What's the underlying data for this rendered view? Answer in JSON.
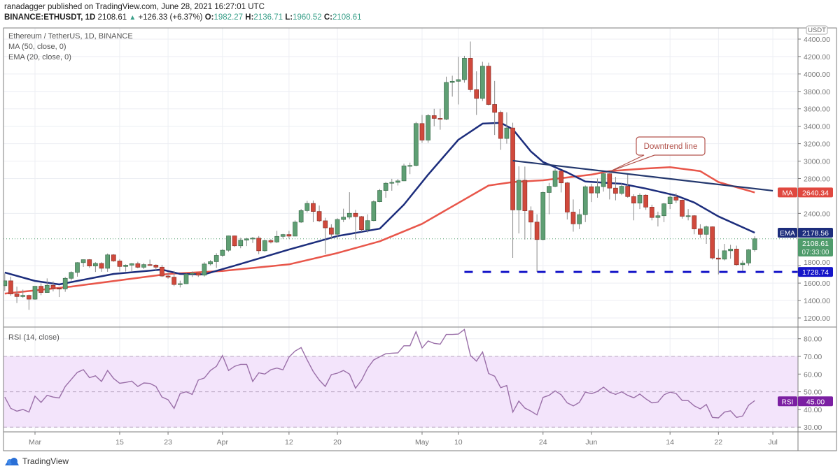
{
  "header": {
    "publisher_line": "ranadagger published on TradingView.com, June 28, 2021 16:27:01 UTC",
    "symbol": "BINANCE:ETHUSDT, 1D",
    "last": "2108.61",
    "change": "+126.33 (+6.37%)",
    "o_label": "O:",
    "o": "1982.27",
    "h_label": "H:",
    "h": "2136.71",
    "l_label": "L:",
    "l": "1960.52",
    "c_label": "C:",
    "c": "2108.61",
    "up_icon": "triangle-up-icon"
  },
  "legend": {
    "title": "Ethereum / TetherUS, 1D, BINANCE",
    "ma": "MA (50, close, 0)",
    "ema": "EMA (20, close, 0)",
    "rsi": "RSI (14, close)"
  },
  "price_axis": {
    "currency": "USDT",
    "labels": [
      "4400.00",
      "4200.00",
      "4000.00",
      "3800.00",
      "3600.00",
      "3400.00",
      "3200.00",
      "3000.00",
      "2800.00",
      "2400.00",
      "1800.00",
      "1600.00",
      "1400.00",
      "1200.00"
    ],
    "values": [
      4400,
      4200,
      4000,
      3800,
      3600,
      3400,
      3200,
      3000,
      2800,
      2400,
      1800,
      1600,
      1400,
      1200
    ]
  },
  "rsi_axis": {
    "labels": [
      "80.00",
      "70.00",
      "60.00",
      "50.00",
      "40.00",
      "30.00"
    ],
    "values": [
      80,
      70,
      60,
      50,
      40,
      30
    ]
  },
  "time_axis": {
    "ticks": [
      {
        "label": "Mar",
        "date": "2021-03-01"
      },
      {
        "label": "15",
        "date": "2021-03-15"
      },
      {
        "label": "23",
        "date": "2021-03-23"
      },
      {
        "label": "Apr",
        "date": "2021-04-01"
      },
      {
        "label": "12",
        "date": "2021-04-12"
      },
      {
        "label": "20",
        "date": "2021-04-20"
      },
      {
        "label": "May",
        "date": "2021-05-04"
      },
      {
        "label": "10",
        "date": "2021-05-10"
      },
      {
        "label": "24",
        "date": "2021-05-24"
      },
      {
        "label": "Jun",
        "date": "2021-06-01"
      },
      {
        "label": "14",
        "date": "2021-06-14"
      },
      {
        "label": "22",
        "date": "2021-06-22"
      },
      {
        "label": "Jul",
        "date": "2021-07-01"
      }
    ]
  },
  "badges": {
    "ma": {
      "tag": "MA",
      "value": "2640.34",
      "price": 2640.34,
      "color": "#e0483f"
    },
    "ema": {
      "tag": "EMA",
      "value": "2178.56",
      "price": 2178.56,
      "color": "#1c2d7c"
    },
    "last": {
      "value": "2108.61",
      "countdown": "07:33:00",
      "price": 2108.61,
      "color": "#4f9c6c"
    },
    "support": {
      "value": "1728.74",
      "price": 1728.74,
      "color": "#1515c8"
    },
    "rsi": {
      "tag": "RSI",
      "value": "45.00",
      "level": 45.0,
      "color": "#7b1fa2"
    }
  },
  "annotation": {
    "label": "Downtrend line",
    "color": "#b3544d"
  },
  "brand": {
    "name": "TradingView",
    "icon": "tradingview-cloud-icon"
  },
  "colors": {
    "up": "#5f9f74",
    "down": "#d0493c",
    "ma": "#e8564a",
    "ema": "#1c2d7c",
    "trendline": "#24386e",
    "rsi": "#9a6fa8",
    "rsi_band": "#f3e4fb"
  },
  "chart_data": {
    "type": "candlestick",
    "symbol": "BINANCE:ETHUSDT",
    "interval": "1D",
    "ylim": [
      1200,
      4400
    ],
    "grid": true,
    "candles_fields": [
      "date",
      "open",
      "high",
      "low",
      "close"
    ],
    "candles": [
      [
        "2021-02-24",
        1570,
        1710,
        1511,
        1626
      ],
      [
        "2021-02-25",
        1626,
        1674,
        1455,
        1475
      ],
      [
        "2021-02-26",
        1475,
        1559,
        1371,
        1446
      ],
      [
        "2021-02-27",
        1446,
        1525,
        1432,
        1459
      ],
      [
        "2021-02-28",
        1459,
        1468,
        1293,
        1416
      ],
      [
        "2021-03-01",
        1416,
        1565,
        1410,
        1564
      ],
      [
        "2021-03-02",
        1564,
        1597,
        1461,
        1492
      ],
      [
        "2021-03-03",
        1492,
        1654,
        1490,
        1575
      ],
      [
        "2021-03-04",
        1575,
        1620,
        1505,
        1541
      ],
      [
        "2021-03-05",
        1541,
        1550,
        1440,
        1533
      ],
      [
        "2021-03-06",
        1533,
        1670,
        1500,
        1655
      ],
      [
        "2021-03-07",
        1655,
        1735,
        1630,
        1723
      ],
      [
        "2021-03-08",
        1723,
        1840,
        1674,
        1835
      ],
      [
        "2021-03-09",
        1835,
        1870,
        1786,
        1869
      ],
      [
        "2021-03-10",
        1869,
        1875,
        1775,
        1796
      ],
      [
        "2021-03-11",
        1796,
        1840,
        1728,
        1826
      ],
      [
        "2021-03-12",
        1826,
        1840,
        1730,
        1770
      ],
      [
        "2021-03-13",
        1770,
        1940,
        1730,
        1924
      ],
      [
        "2021-03-14",
        1924,
        1932,
        1845,
        1854
      ],
      [
        "2021-03-15",
        1854,
        1875,
        1733,
        1791
      ],
      [
        "2021-03-16",
        1791,
        1815,
        1732,
        1806
      ],
      [
        "2021-03-17",
        1806,
        1830,
        1730,
        1823
      ],
      [
        "2021-03-18",
        1823,
        1845,
        1770,
        1782
      ],
      [
        "2021-03-19",
        1782,
        1830,
        1762,
        1812
      ],
      [
        "2021-03-20",
        1812,
        1870,
        1798,
        1807
      ],
      [
        "2021-03-21",
        1807,
        1815,
        1744,
        1783
      ],
      [
        "2021-03-22",
        1783,
        1810,
        1670,
        1681
      ],
      [
        "2021-03-23",
        1681,
        1721,
        1650,
        1668
      ],
      [
        "2021-03-24",
        1668,
        1740,
        1565,
        1584
      ],
      [
        "2021-03-25",
        1584,
        1628,
        1550,
        1593
      ],
      [
        "2021-03-26",
        1593,
        1710,
        1590,
        1703
      ],
      [
        "2021-03-27",
        1703,
        1734,
        1670,
        1714
      ],
      [
        "2021-03-28",
        1714,
        1720,
        1671,
        1691
      ],
      [
        "2021-03-29",
        1691,
        1840,
        1675,
        1819
      ],
      [
        "2021-03-30",
        1819,
        1864,
        1803,
        1846
      ],
      [
        "2021-03-31",
        1846,
        1943,
        1775,
        1918
      ],
      [
        "2021-04-01",
        1918,
        1990,
        1900,
        1977
      ],
      [
        "2021-04-02",
        1977,
        2145,
        1960,
        2142
      ],
      [
        "2021-04-03",
        2142,
        2145,
        2015,
        2028
      ],
      [
        "2021-04-04",
        2028,
        2120,
        2000,
        2093
      ],
      [
        "2021-04-05",
        2093,
        2120,
        2025,
        2108
      ],
      [
        "2021-04-06",
        2108,
        2130,
        2060,
        2116
      ],
      [
        "2021-04-07",
        2116,
        2140,
        1932,
        1971
      ],
      [
        "2021-04-08",
        1971,
        2100,
        1960,
        2088
      ],
      [
        "2021-04-09",
        2088,
        2105,
        2055,
        2072
      ],
      [
        "2021-04-10",
        2072,
        2200,
        2060,
        2136
      ],
      [
        "2021-04-11",
        2136,
        2165,
        2110,
        2157
      ],
      [
        "2021-04-12",
        2157,
        2200,
        2110,
        2139
      ],
      [
        "2021-04-13",
        2139,
        2320,
        2138,
        2300
      ],
      [
        "2021-04-14",
        2300,
        2450,
        2290,
        2432
      ],
      [
        "2021-04-15",
        2432,
        2544,
        2410,
        2514
      ],
      [
        "2021-04-16",
        2514,
        2548,
        2300,
        2422
      ],
      [
        "2021-04-17",
        2422,
        2490,
        2300,
        2315
      ],
      [
        "2021-04-18",
        2315,
        2350,
        1935,
        2234
      ],
      [
        "2021-04-19",
        2234,
        2275,
        2110,
        2161
      ],
      [
        "2021-04-20",
        2161,
        2346,
        2102,
        2330
      ],
      [
        "2021-04-21",
        2330,
        2454,
        2300,
        2357
      ],
      [
        "2021-04-22",
        2357,
        2643,
        2333,
        2401
      ],
      [
        "2021-04-23",
        2401,
        2440,
        2100,
        2363
      ],
      [
        "2021-04-24",
        2363,
        2370,
        2190,
        2213
      ],
      [
        "2021-04-25",
        2213,
        2390,
        2180,
        2317
      ],
      [
        "2021-04-26",
        2317,
        2549,
        2310,
        2534
      ],
      [
        "2021-04-27",
        2534,
        2680,
        2528,
        2663
      ],
      [
        "2021-04-28",
        2663,
        2760,
        2580,
        2746
      ],
      [
        "2021-04-29",
        2746,
        2797,
        2660,
        2756
      ],
      [
        "2021-04-30",
        2756,
        2796,
        2720,
        2773
      ],
      [
        "2021-05-01",
        2773,
        2970,
        2771,
        2945
      ],
      [
        "2021-05-02",
        2945,
        2983,
        2850,
        2950
      ],
      [
        "2021-05-03",
        2950,
        3450,
        2940,
        3431
      ],
      [
        "2021-05-04",
        3431,
        3530,
        3210,
        3241
      ],
      [
        "2021-05-05",
        3241,
        3541,
        3210,
        3522
      ],
      [
        "2021-05-06",
        3522,
        3600,
        3400,
        3490
      ],
      [
        "2021-05-07",
        3490,
        3600,
        3360,
        3481
      ],
      [
        "2021-05-08",
        3481,
        3969,
        3470,
        3903
      ],
      [
        "2021-05-09",
        3903,
        3980,
        3740,
        3916
      ],
      [
        "2021-05-10",
        3916,
        4197,
        3650,
        3935
      ],
      [
        "2021-05-11",
        3935,
        4208,
        3900,
        4180
      ],
      [
        "2021-05-12",
        4180,
        4372,
        3790,
        3820
      ],
      [
        "2021-05-13",
        3820,
        4030,
        3530,
        3720
      ],
      [
        "2021-05-14",
        3720,
        4140,
        3690,
        4090
      ],
      [
        "2021-05-15",
        4090,
        4130,
        3640,
        3650
      ],
      [
        "2021-05-16",
        3650,
        3920,
        3300,
        3560
      ],
      [
        "2021-05-17",
        3560,
        3580,
        3130,
        3260
      ],
      [
        "2021-05-18",
        3260,
        3560,
        3200,
        3380
      ],
      [
        "2021-05-19",
        3380,
        3440,
        1890,
        2440
      ],
      [
        "2021-05-20",
        2440,
        2940,
        2170,
        2780
      ],
      [
        "2021-05-21",
        2780,
        2937,
        2100,
        2430
      ],
      [
        "2021-05-22",
        2430,
        2480,
        2100,
        2300
      ],
      [
        "2021-05-23",
        2300,
        2390,
        1728.74,
        2100
      ],
      [
        "2021-05-24",
        2100,
        2650,
        2090,
        2640
      ],
      [
        "2021-05-25",
        2640,
        2750,
        2390,
        2710
      ],
      [
        "2021-05-26",
        2710,
        2910,
        2700,
        2886
      ],
      [
        "2021-05-27",
        2886,
        2890,
        2640,
        2750
      ],
      [
        "2021-05-28",
        2750,
        2760,
        2330,
        2415
      ],
      [
        "2021-05-29",
        2415,
        2560,
        2190,
        2280
      ],
      [
        "2021-05-30",
        2280,
        2450,
        2220,
        2386
      ],
      [
        "2021-05-31",
        2386,
        2720,
        2300,
        2706
      ],
      [
        "2021-06-01",
        2706,
        2740,
        2530,
        2634
      ],
      [
        "2021-06-02",
        2634,
        2800,
        2580,
        2707
      ],
      [
        "2021-06-03",
        2707,
        2890,
        2650,
        2855
      ],
      [
        "2021-06-04",
        2855,
        2860,
        2560,
        2690
      ],
      [
        "2021-06-05",
        2690,
        2820,
        2550,
        2630
      ],
      [
        "2021-06-06",
        2630,
        2750,
        2610,
        2711
      ],
      [
        "2021-06-07",
        2711,
        2845,
        2580,
        2593
      ],
      [
        "2021-06-08",
        2593,
        2620,
        2320,
        2518
      ],
      [
        "2021-06-09",
        2518,
        2630,
        2450,
        2609
      ],
      [
        "2021-06-10",
        2609,
        2620,
        2440,
        2472
      ],
      [
        "2021-06-11",
        2472,
        2500,
        2320,
        2353
      ],
      [
        "2021-06-12",
        2353,
        2420,
        2250,
        2373
      ],
      [
        "2021-06-13",
        2373,
        2520,
        2300,
        2510
      ],
      [
        "2021-06-14",
        2510,
        2610,
        2450,
        2587
      ],
      [
        "2021-06-15",
        2587,
        2630,
        2520,
        2552
      ],
      [
        "2021-06-16",
        2552,
        2560,
        2340,
        2367
      ],
      [
        "2021-06-17",
        2367,
        2450,
        2320,
        2373
      ],
      [
        "2021-06-18",
        2373,
        2380,
        2160,
        2222
      ],
      [
        "2021-06-19",
        2222,
        2275,
        2120,
        2160
      ],
      [
        "2021-06-20",
        2160,
        2260,
        2050,
        2246
      ],
      [
        "2021-06-21",
        2246,
        2250,
        1870,
        1888
      ],
      [
        "2021-06-22",
        1888,
        1990,
        1700,
        1875
      ],
      [
        "2021-06-23",
        1875,
        2050,
        1860,
        1971
      ],
      [
        "2021-06-24",
        1971,
        2040,
        1880,
        1991
      ],
      [
        "2021-06-25",
        1991,
        2030,
        1800,
        1811
      ],
      [
        "2021-06-26",
        1811,
        1860,
        1720,
        1831
      ],
      [
        "2021-06-27",
        1831,
        1990,
        1800,
        1982.27
      ],
      [
        "2021-06-28",
        1982.27,
        2136.71,
        1960.52,
        2108.61
      ]
    ],
    "ma50": [
      [
        "2021-02-24",
        1480
      ],
      [
        "2021-03-07",
        1560
      ],
      [
        "2021-03-23",
        1705
      ],
      [
        "2021-04-01",
        1740
      ],
      [
        "2021-04-12",
        1815
      ],
      [
        "2021-04-20",
        1945
      ],
      [
        "2021-04-27",
        2080
      ],
      [
        "2021-05-04",
        2280
      ],
      [
        "2021-05-10",
        2520
      ],
      [
        "2021-05-15",
        2720
      ],
      [
        "2021-05-19",
        2760
      ],
      [
        "2021-05-24",
        2780
      ],
      [
        "2021-06-01",
        2845
      ],
      [
        "2021-06-04",
        2885
      ],
      [
        "2021-06-10",
        2915
      ],
      [
        "2021-06-14",
        2930
      ],
      [
        "2021-06-19",
        2885
      ],
      [
        "2021-06-22",
        2760
      ],
      [
        "2021-06-28",
        2640.34
      ]
    ],
    "ema20": [
      [
        "2021-02-24",
        1722
      ],
      [
        "2021-03-01",
        1625
      ],
      [
        "2021-03-05",
        1585
      ],
      [
        "2021-03-14",
        1705
      ],
      [
        "2021-03-22",
        1755
      ],
      [
        "2021-03-25",
        1705
      ],
      [
        "2021-03-29",
        1700
      ],
      [
        "2021-04-03",
        1800
      ],
      [
        "2021-04-12",
        1985
      ],
      [
        "2021-04-20",
        2140
      ],
      [
        "2021-04-27",
        2225
      ],
      [
        "2021-05-01",
        2500
      ],
      [
        "2021-05-05",
        2845
      ],
      [
        "2021-05-10",
        3245
      ],
      [
        "2021-05-14",
        3430
      ],
      [
        "2021-05-17",
        3440
      ],
      [
        "2021-05-19",
        3365
      ],
      [
        "2021-05-22",
        3110
      ],
      [
        "2021-05-24",
        2990
      ],
      [
        "2021-05-28",
        2870
      ],
      [
        "2021-05-31",
        2765
      ],
      [
        "2021-06-06",
        2740
      ],
      [
        "2021-06-10",
        2685
      ],
      [
        "2021-06-15",
        2605
      ],
      [
        "2021-06-18",
        2525
      ],
      [
        "2021-06-22",
        2365
      ],
      [
        "2021-06-28",
        2178.56
      ]
    ],
    "downtrend_line": {
      "start": [
        "2021-05-19",
        3005
      ],
      "end": [
        "2021-07-01",
        2660
      ]
    },
    "support_line": {
      "price": 1728.74,
      "from": "2021-05-11"
    },
    "rsi": {
      "period": 14,
      "ylim": [
        25,
        88
      ],
      "band": [
        30,
        70
      ],
      "values": [
        47,
        40.6,
        39,
        40,
        38.5,
        47.5,
        44,
        48,
        47,
        46.5,
        53,
        57,
        61,
        62.5,
        58,
        59,
        55.8,
        62,
        57.5,
        54.8,
        55.3,
        56,
        53,
        55,
        54.7,
        53,
        47,
        45.5,
        40.6,
        49,
        50,
        48.5,
        56.6,
        57.8,
        62,
        64.4,
        70.5,
        62,
        64.4,
        65.5,
        65.5,
        55.8,
        60.7,
        60,
        62.5,
        63.4,
        62.4,
        69.6,
        73,
        75,
        68,
        61.5,
        56.6,
        53,
        59.7,
        60.5,
        62,
        60,
        52,
        56.6,
        63.4,
        68,
        69.8,
        71.5,
        71.8,
        72,
        76,
        76,
        84,
        74.8,
        78.7,
        77.4,
        76.9,
        82.4,
        82.4,
        82.6,
        85.2,
        70.5,
        67.3,
        72.5,
        60.3,
        58.8,
        52.3,
        53.5,
        38.5,
        44.7,
        40.8,
        39,
        36.9,
        46.8,
        48,
        50.5,
        48.3,
        43.7,
        42,
        44,
        49.8,
        48.9,
        50.2,
        52.6,
        49.8,
        48.5,
        50,
        48,
        46.6,
        48.7,
        46,
        43.7,
        44.2,
        48.3,
        49.8,
        49,
        45.1,
        45,
        42,
        40.3,
        42.8,
        35.5,
        35.2,
        38.5,
        39.2,
        35.5,
        36.3,
        42.4,
        45.0
      ]
    }
  }
}
